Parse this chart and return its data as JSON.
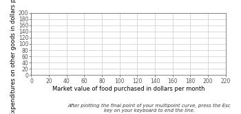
{
  "title": "",
  "xlabel": "Market value of food purchased in dollars per month",
  "ylabel": "Expenditures on other goods in dollars per month",
  "xlim": [
    0,
    220
  ],
  "ylim": [
    0,
    200
  ],
  "xticks": [
    0,
    20,
    40,
    60,
    80,
    100,
    120,
    140,
    160,
    180,
    200,
    220
  ],
  "yticks": [
    0,
    20,
    40,
    60,
    80,
    100,
    120,
    140,
    160,
    180,
    200
  ],
  "grid_color": "#cccccc",
  "axis_color": "#555555",
  "bg_color": "#ffffff",
  "tick_fontsize": 5.5,
  "label_fontsize": 6.0,
  "caption": "After plotting the final point of your multipoint curve, press the Esc\nkey on your keyboard to end the line.",
  "caption_fontsize": 5.0
}
